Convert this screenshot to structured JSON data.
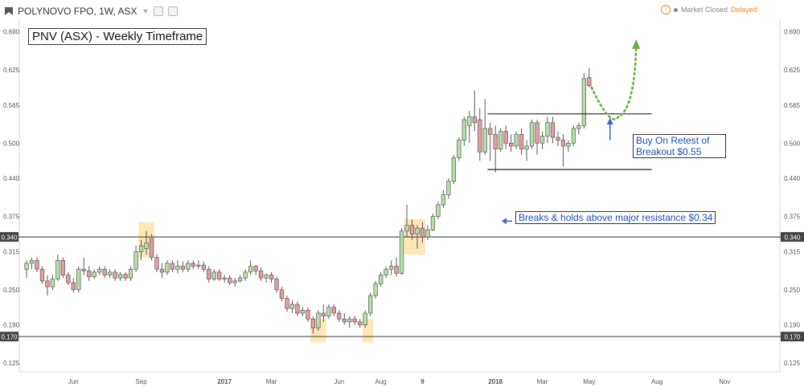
{
  "header": {
    "symbol": "POLYNOVO FPO, 1W, ASX",
    "market_status": "Market Closed",
    "delayed": "Delayed"
  },
  "annotations": {
    "title": "PNV (ASX) - Weekly Timeframe",
    "note_breakout": "Breaks & holds above major resistance $0.34",
    "note_buy": "Buy On Retest of Breakout $0.55"
  },
  "chart_data": {
    "type": "candlestick",
    "ylim": [
      0.11,
      0.71
    ],
    "y_ticks": [
      0.125,
      0.19,
      0.25,
      0.315,
      0.375,
      0.44,
      0.5,
      0.565,
      0.625,
      0.69
    ],
    "y_tick_labels": [
      "0.125",
      "0.190",
      "0.250",
      "0.315",
      "0.375",
      "0.440",
      "0.500",
      "0.565",
      "0.625",
      "0.690"
    ],
    "x_ticks": [
      {
        "label": "Jun",
        "week": 9
      },
      {
        "label": "Sep",
        "week": 22
      },
      {
        "label": "2017",
        "week": 38
      },
      {
        "label": "Mar",
        "week": 47
      },
      {
        "label": "Jun",
        "week": 60
      },
      {
        "label": "Aug",
        "week": 68
      },
      {
        "label": "9",
        "week": 76
      },
      {
        "label": "2018",
        "week": 90
      },
      {
        "label": "Mar",
        "week": 99
      },
      {
        "label": "May",
        "week": 108
      },
      {
        "label": "Aug",
        "week": 121
      },
      {
        "label": "Nov",
        "week": 134
      }
    ],
    "horizontal_levels": [
      {
        "label": "0.340",
        "value": 0.34
      },
      {
        "label": "0.170",
        "value": 0.17
      }
    ],
    "channel": {
      "upper": 0.55,
      "lower": 0.455,
      "from_week": 88.5,
      "to_week": 120
    },
    "colors": {
      "up": "#b6dfa8",
      "down": "#e69ca0",
      "outline": "#5a5a5a",
      "highlight": "#fbe3a8",
      "projection": "#6aad46",
      "arrow": "#3366cc"
    },
    "candles": [
      {
        "o": 0.285,
        "h": 0.3,
        "l": 0.27,
        "c": 0.295
      },
      {
        "o": 0.295,
        "h": 0.305,
        "l": 0.285,
        "c": 0.3
      },
      {
        "o": 0.3,
        "h": 0.305,
        "l": 0.28,
        "c": 0.285
      },
      {
        "o": 0.285,
        "h": 0.29,
        "l": 0.26,
        "c": 0.265
      },
      {
        "o": 0.265,
        "h": 0.275,
        "l": 0.24,
        "c": 0.255
      },
      {
        "o": 0.255,
        "h": 0.275,
        "l": 0.25,
        "c": 0.268
      },
      {
        "o": 0.268,
        "h": 0.31,
        "l": 0.265,
        "c": 0.3
      },
      {
        "o": 0.3,
        "h": 0.305,
        "l": 0.27,
        "c": 0.275
      },
      {
        "o": 0.275,
        "h": 0.28,
        "l": 0.258,
        "c": 0.262
      },
      {
        "o": 0.262,
        "h": 0.27,
        "l": 0.245,
        "c": 0.25
      },
      {
        "o": 0.25,
        "h": 0.29,
        "l": 0.245,
        "c": 0.285
      },
      {
        "o": 0.285,
        "h": 0.305,
        "l": 0.275,
        "c": 0.282
      },
      {
        "o": 0.282,
        "h": 0.29,
        "l": 0.265,
        "c": 0.272
      },
      {
        "o": 0.272,
        "h": 0.285,
        "l": 0.268,
        "c": 0.28
      },
      {
        "o": 0.28,
        "h": 0.29,
        "l": 0.275,
        "c": 0.285
      },
      {
        "o": 0.285,
        "h": 0.29,
        "l": 0.27,
        "c": 0.275
      },
      {
        "o": 0.275,
        "h": 0.285,
        "l": 0.27,
        "c": 0.28
      },
      {
        "o": 0.28,
        "h": 0.285,
        "l": 0.265,
        "c": 0.27
      },
      {
        "o": 0.27,
        "h": 0.28,
        "l": 0.265,
        "c": 0.276
      },
      {
        "o": 0.276,
        "h": 0.28,
        "l": 0.265,
        "c": 0.27
      },
      {
        "o": 0.27,
        "h": 0.29,
        "l": 0.265,
        "c": 0.285
      },
      {
        "o": 0.285,
        "h": 0.325,
        "l": 0.28,
        "c": 0.315
      },
      {
        "o": 0.315,
        "h": 0.335,
        "l": 0.3,
        "c": 0.325
      },
      {
        "o": 0.32,
        "h": 0.35,
        "l": 0.31,
        "c": 0.33
      },
      {
        "o": 0.34,
        "h": 0.345,
        "l": 0.3,
        "c": 0.305
      },
      {
        "o": 0.305,
        "h": 0.31,
        "l": 0.28,
        "c": 0.285
      },
      {
        "o": 0.285,
        "h": 0.295,
        "l": 0.27,
        "c": 0.28
      },
      {
        "o": 0.28,
        "h": 0.3,
        "l": 0.275,
        "c": 0.295
      },
      {
        "o": 0.295,
        "h": 0.3,
        "l": 0.28,
        "c": 0.285
      },
      {
        "o": 0.285,
        "h": 0.3,
        "l": 0.278,
        "c": 0.29
      },
      {
        "o": 0.29,
        "h": 0.298,
        "l": 0.28,
        "c": 0.285
      },
      {
        "o": 0.285,
        "h": 0.3,
        "l": 0.28,
        "c": 0.295
      },
      {
        "o": 0.295,
        "h": 0.3,
        "l": 0.285,
        "c": 0.29
      },
      {
        "o": 0.29,
        "h": 0.3,
        "l": 0.285,
        "c": 0.292
      },
      {
        "o": 0.292,
        "h": 0.298,
        "l": 0.28,
        "c": 0.285
      },
      {
        "o": 0.285,
        "h": 0.29,
        "l": 0.262,
        "c": 0.268
      },
      {
        "o": 0.268,
        "h": 0.285,
        "l": 0.265,
        "c": 0.28
      },
      {
        "o": 0.28,
        "h": 0.285,
        "l": 0.265,
        "c": 0.268
      },
      {
        "o": 0.268,
        "h": 0.275,
        "l": 0.262,
        "c": 0.27
      },
      {
        "o": 0.27,
        "h": 0.275,
        "l": 0.258,
        "c": 0.262
      },
      {
        "o": 0.262,
        "h": 0.27,
        "l": 0.255,
        "c": 0.265
      },
      {
        "o": 0.265,
        "h": 0.275,
        "l": 0.262,
        "c": 0.27
      },
      {
        "o": 0.27,
        "h": 0.285,
        "l": 0.265,
        "c": 0.28
      },
      {
        "o": 0.28,
        "h": 0.3,
        "l": 0.275,
        "c": 0.29
      },
      {
        "o": 0.29,
        "h": 0.292,
        "l": 0.275,
        "c": 0.282
      },
      {
        "o": 0.282,
        "h": 0.288,
        "l": 0.265,
        "c": 0.27
      },
      {
        "o": 0.27,
        "h": 0.278,
        "l": 0.262,
        "c": 0.275
      },
      {
        "o": 0.275,
        "h": 0.28,
        "l": 0.262,
        "c": 0.268
      },
      {
        "o": 0.268,
        "h": 0.272,
        "l": 0.245,
        "c": 0.25
      },
      {
        "o": 0.25,
        "h": 0.255,
        "l": 0.23,
        "c": 0.235
      },
      {
        "o": 0.235,
        "h": 0.24,
        "l": 0.212,
        "c": 0.218
      },
      {
        "o": 0.218,
        "h": 0.232,
        "l": 0.21,
        "c": 0.225
      },
      {
        "o": 0.225,
        "h": 0.23,
        "l": 0.205,
        "c": 0.21
      },
      {
        "o": 0.21,
        "h": 0.22,
        "l": 0.205,
        "c": 0.215
      },
      {
        "o": 0.215,
        "h": 0.22,
        "l": 0.195,
        "c": 0.2
      },
      {
        "o": 0.2,
        "h": 0.205,
        "l": 0.175,
        "c": 0.185
      },
      {
        "o": 0.185,
        "h": 0.215,
        "l": 0.18,
        "c": 0.21
      },
      {
        "o": 0.21,
        "h": 0.225,
        "l": 0.195,
        "c": 0.205
      },
      {
        "o": 0.205,
        "h": 0.225,
        "l": 0.2,
        "c": 0.22
      },
      {
        "o": 0.22,
        "h": 0.225,
        "l": 0.205,
        "c": 0.21
      },
      {
        "o": 0.21,
        "h": 0.215,
        "l": 0.195,
        "c": 0.2
      },
      {
        "o": 0.2,
        "h": 0.21,
        "l": 0.19,
        "c": 0.195
      },
      {
        "o": 0.195,
        "h": 0.205,
        "l": 0.185,
        "c": 0.2
      },
      {
        "o": 0.2,
        "h": 0.205,
        "l": 0.19,
        "c": 0.195
      },
      {
        "o": 0.195,
        "h": 0.2,
        "l": 0.185,
        "c": 0.19
      },
      {
        "o": 0.19,
        "h": 0.215,
        "l": 0.185,
        "c": 0.21
      },
      {
        "o": 0.21,
        "h": 0.245,
        "l": 0.205,
        "c": 0.24
      },
      {
        "o": 0.24,
        "h": 0.265,
        "l": 0.235,
        "c": 0.26
      },
      {
        "o": 0.26,
        "h": 0.28,
        "l": 0.255,
        "c": 0.275
      },
      {
        "o": 0.275,
        "h": 0.29,
        "l": 0.27,
        "c": 0.285
      },
      {
        "o": 0.285,
        "h": 0.3,
        "l": 0.275,
        "c": 0.29
      },
      {
        "o": 0.29,
        "h": 0.305,
        "l": 0.272,
        "c": 0.278
      },
      {
        "o": 0.278,
        "h": 0.355,
        "l": 0.275,
        "c": 0.35
      },
      {
        "o": 0.35,
        "h": 0.395,
        "l": 0.34,
        "c": 0.36
      },
      {
        "o": 0.36,
        "h": 0.37,
        "l": 0.335,
        "c": 0.345
      },
      {
        "o": 0.345,
        "h": 0.36,
        "l": 0.32,
        "c": 0.355
      },
      {
        "o": 0.355,
        "h": 0.365,
        "l": 0.33,
        "c": 0.34
      },
      {
        "o": 0.34,
        "h": 0.36,
        "l": 0.335,
        "c": 0.352
      },
      {
        "o": 0.352,
        "h": 0.38,
        "l": 0.35,
        "c": 0.375
      },
      {
        "o": 0.375,
        "h": 0.4,
        "l": 0.37,
        "c": 0.395
      },
      {
        "o": 0.395,
        "h": 0.42,
        "l": 0.39,
        "c": 0.412
      },
      {
        "o": 0.412,
        "h": 0.44,
        "l": 0.405,
        "c": 0.435
      },
      {
        "o": 0.435,
        "h": 0.48,
        "l": 0.43,
        "c": 0.475
      },
      {
        "o": 0.475,
        "h": 0.51,
        "l": 0.47,
        "c": 0.505
      },
      {
        "o": 0.505,
        "h": 0.545,
        "l": 0.495,
        "c": 0.54
      },
      {
        "o": 0.53,
        "h": 0.555,
        "l": 0.5,
        "c": 0.545
      },
      {
        "o": 0.545,
        "h": 0.59,
        "l": 0.52,
        "c": 0.535
      },
      {
        "o": 0.54,
        "h": 0.56,
        "l": 0.47,
        "c": 0.485
      },
      {
        "o": 0.485,
        "h": 0.575,
        "l": 0.48,
        "c": 0.525
      },
      {
        "o": 0.525,
        "h": 0.535,
        "l": 0.47,
        "c": 0.515
      },
      {
        "o": 0.515,
        "h": 0.53,
        "l": 0.45,
        "c": 0.49
      },
      {
        "o": 0.49,
        "h": 0.525,
        "l": 0.485,
        "c": 0.52
      },
      {
        "o": 0.52,
        "h": 0.53,
        "l": 0.49,
        "c": 0.5
      },
      {
        "o": 0.5,
        "h": 0.515,
        "l": 0.485,
        "c": 0.495
      },
      {
        "o": 0.495,
        "h": 0.52,
        "l": 0.49,
        "c": 0.515
      },
      {
        "o": 0.515,
        "h": 0.525,
        "l": 0.48,
        "c": 0.49
      },
      {
        "o": 0.49,
        "h": 0.505,
        "l": 0.47,
        "c": 0.495
      },
      {
        "o": 0.495,
        "h": 0.54,
        "l": 0.49,
        "c": 0.535
      },
      {
        "o": 0.535,
        "h": 0.54,
        "l": 0.48,
        "c": 0.5
      },
      {
        "o": 0.5,
        "h": 0.52,
        "l": 0.49,
        "c": 0.512
      },
      {
        "o": 0.512,
        "h": 0.545,
        "l": 0.5,
        "c": 0.535
      },
      {
        "o": 0.535,
        "h": 0.545,
        "l": 0.5,
        "c": 0.51
      },
      {
        "o": 0.51,
        "h": 0.52,
        "l": 0.495,
        "c": 0.505
      },
      {
        "o": 0.505,
        "h": 0.515,
        "l": 0.46,
        "c": 0.495
      },
      {
        "o": 0.495,
        "h": 0.505,
        "l": 0.485,
        "c": 0.5
      },
      {
        "o": 0.5,
        "h": 0.53,
        "l": 0.495,
        "c": 0.525
      },
      {
        "o": 0.525,
        "h": 0.535,
        "l": 0.515,
        "c": 0.53
      },
      {
        "o": 0.53,
        "h": 0.62,
        "l": 0.525,
        "c": 0.61
      },
      {
        "o": 0.612,
        "h": 0.628,
        "l": 0.595,
        "c": 0.598
      }
    ],
    "highlight_zones": [
      {
        "from_week": 21.5,
        "to_week": 24.5,
        "low": 0.305,
        "high": 0.365
      },
      {
        "from_week": 54.5,
        "to_week": 57.5,
        "low": 0.16,
        "high": 0.2
      },
      {
        "from_week": 64.5,
        "to_week": 66.5,
        "low": 0.16,
        "high": 0.2
      },
      {
        "from_week": 72.5,
        "to_week": 76.5,
        "low": 0.31,
        "high": 0.37
      }
    ]
  }
}
